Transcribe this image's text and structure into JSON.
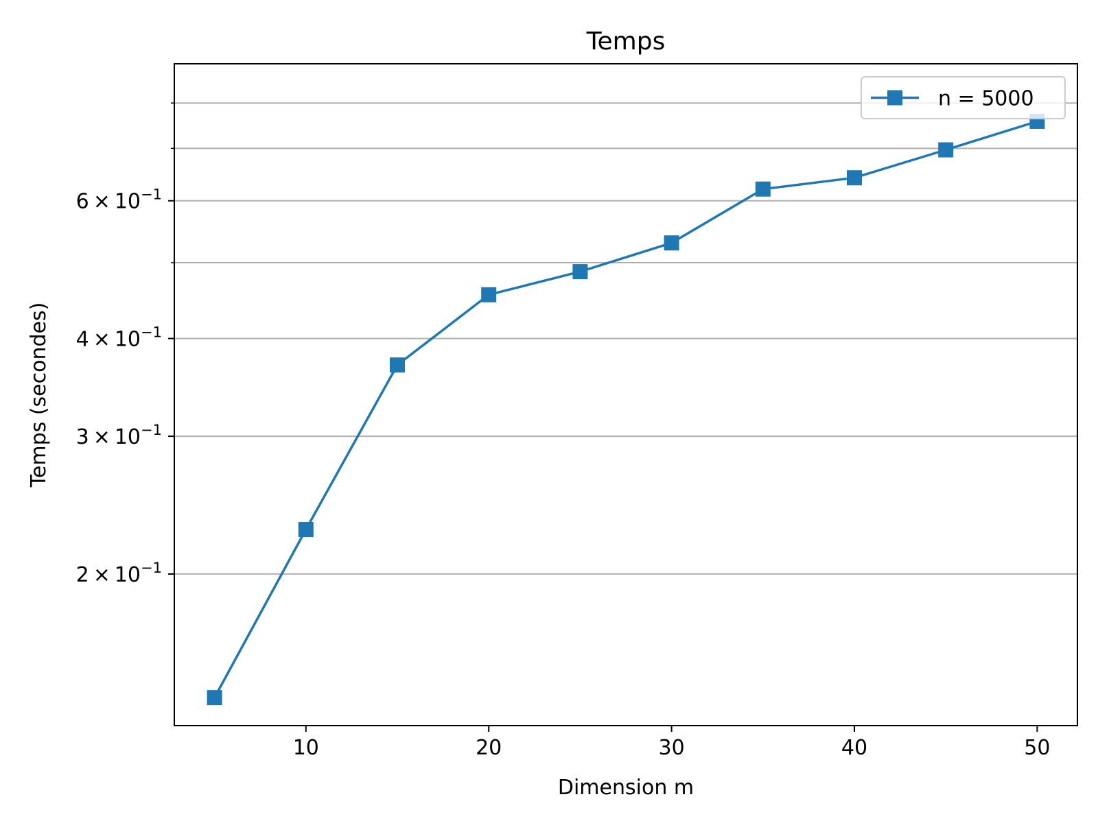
{
  "chart_data": {
    "type": "line",
    "title": "Temps",
    "xlabel": "Dimension m",
    "ylabel": "Temps (secondes)",
    "x_scale": "linear",
    "y_scale": "log",
    "xlim": [
      2.8,
      52.2
    ],
    "ylim": [
      0.128,
      0.898
    ],
    "x_ticks": [
      10,
      20,
      30,
      40,
      50
    ],
    "y_ticks": [
      {
        "value": 0.2,
        "mantissa": "2",
        "base": "10",
        "exponent": "−1"
      },
      {
        "value": 0.3,
        "mantissa": "3",
        "base": "10",
        "exponent": "−1"
      },
      {
        "value": 0.4,
        "mantissa": "4",
        "base": "10",
        "exponent": "−1"
      },
      {
        "value": 0.6,
        "mantissa": "6",
        "base": "10",
        "exponent": "−1"
      }
    ],
    "y_minor_ticks": [
      0.5,
      0.7,
      0.8
    ],
    "grid": "y",
    "legend": "top-right",
    "colors": {
      "series": "#1f77b4",
      "grid": "#b0b0b0"
    },
    "series": [
      {
        "name": "n = 5000",
        "marker": "square",
        "x": [
          5,
          10,
          15,
          20,
          25,
          30,
          35,
          40,
          45,
          50
        ],
        "y": [
          0.139,
          0.228,
          0.37,
          0.455,
          0.487,
          0.53,
          0.621,
          0.642,
          0.697,
          0.758
        ]
      }
    ]
  }
}
